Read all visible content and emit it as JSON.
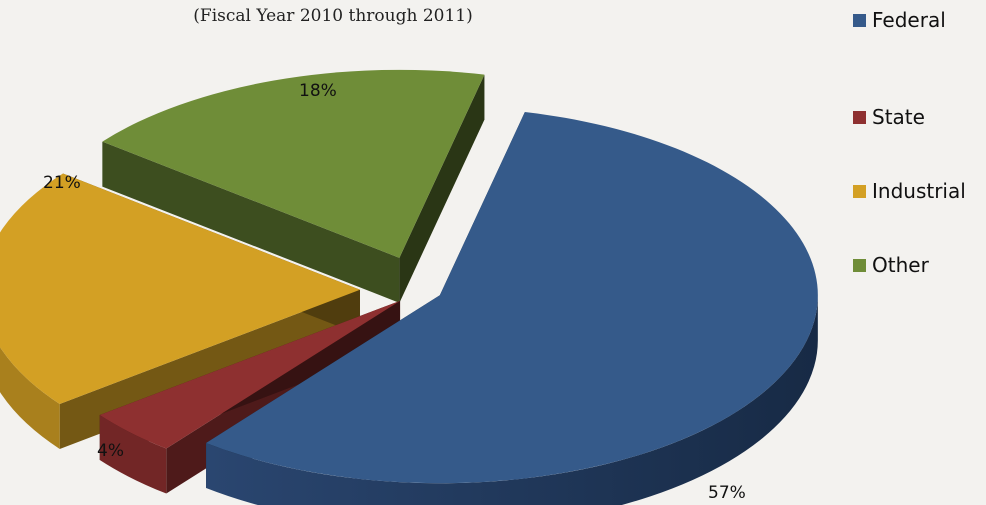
{
  "chart_data": {
    "type": "pie",
    "title": "",
    "subtitle": "(Fiscal Year 2010 through 2011)",
    "categories": [
      "Federal",
      "State",
      "Industrial",
      "Other"
    ],
    "values": [
      57,
      4,
      21,
      18
    ],
    "value_labels": [
      "57%",
      "4%",
      "21%",
      "18%"
    ],
    "colors": [
      "#355a8a",
      "#8e3030",
      "#d3a024",
      "#6f8d38"
    ],
    "legend_position": "top-right",
    "style": "3d-exploded"
  }
}
